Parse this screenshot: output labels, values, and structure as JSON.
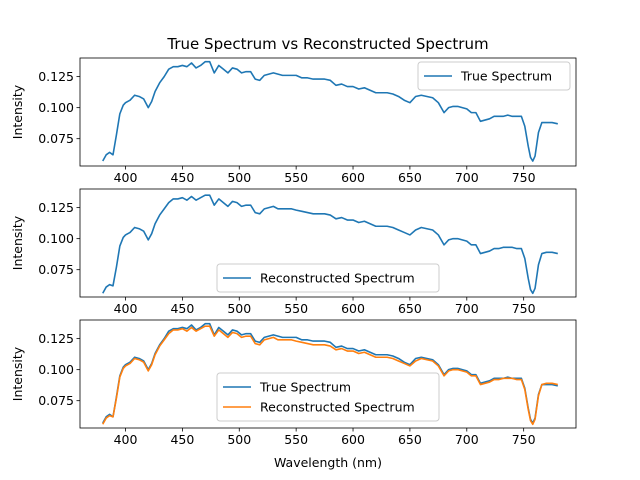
{
  "chart_data": [
    {
      "type": "line",
      "title": "True Spectrum vs Reconstructed Spectrum",
      "xlabel": "",
      "ylabel": "Intensity",
      "xlim": [
        360,
        796
      ],
      "ylim": [
        0.053,
        0.14
      ],
      "xticks": [
        "400",
        "450",
        "500",
        "550",
        "600",
        "650",
        "700",
        "750"
      ],
      "yticks": [
        "0.075",
        "0.100",
        "0.125"
      ],
      "legend_position": "upper right",
      "series": [
        {
          "name": "True Spectrum",
          "color": "#1f77b4",
          "ref": "true"
        }
      ]
    },
    {
      "type": "line",
      "title": "",
      "xlabel": "",
      "ylabel": "Intensity",
      "xlim": [
        360,
        796
      ],
      "ylim": [
        0.053,
        0.14
      ],
      "xticks": [
        "400",
        "450",
        "500",
        "550",
        "600",
        "650",
        "700",
        "750"
      ],
      "yticks": [
        "0.075",
        "0.100",
        "0.125"
      ],
      "legend_position": "lower center",
      "series": [
        {
          "name": "Reconstructed Spectrum",
          "color": "#1f77b4",
          "ref": "reconstructed"
        }
      ]
    },
    {
      "type": "line",
      "title": "",
      "xlabel": "Wavelength (nm)",
      "ylabel": "Intensity",
      "xlim": [
        360,
        796
      ],
      "ylim": [
        0.053,
        0.14
      ],
      "xticks": [
        "400",
        "450",
        "500",
        "550",
        "600",
        "650",
        "700",
        "750"
      ],
      "yticks": [
        "0.075",
        "0.100",
        "0.125"
      ],
      "legend_position": "lower center",
      "series": [
        {
          "name": "True Spectrum",
          "color": "#1f77b4",
          "ref": "true"
        },
        {
          "name": "Reconstructed Spectrum",
          "color": "#ff7f0e",
          "ref": "reconstructed"
        }
      ]
    }
  ],
  "spectra": {
    "x": [
      380,
      383,
      386,
      389,
      392,
      395,
      398,
      400,
      404,
      408,
      412,
      416,
      420,
      423,
      426,
      430,
      434,
      438,
      442,
      446,
      450,
      454,
      458,
      462,
      466,
      470,
      474,
      478,
      482,
      486,
      490,
      494,
      498,
      502,
      506,
      510,
      514,
      518,
      522,
      526,
      530,
      534,
      538,
      542,
      546,
      550,
      555,
      560,
      565,
      570,
      575,
      580,
      585,
      590,
      595,
      600,
      605,
      610,
      615,
      620,
      625,
      630,
      635,
      640,
      645,
      650,
      655,
      660,
      665,
      670,
      675,
      680,
      684,
      688,
      692,
      696,
      700,
      704,
      708,
      712,
      716,
      720,
      724,
      728,
      732,
      736,
      740,
      744,
      748,
      751,
      754,
      756,
      758,
      760,
      763,
      766,
      770,
      775,
      780
    ],
    "true": [
      0.057,
      0.062,
      0.064,
      0.062,
      0.078,
      0.095,
      0.102,
      0.104,
      0.106,
      0.11,
      0.109,
      0.107,
      0.1,
      0.105,
      0.113,
      0.12,
      0.125,
      0.131,
      0.133,
      0.133,
      0.134,
      0.133,
      0.136,
      0.132,
      0.134,
      0.137,
      0.137,
      0.128,
      0.134,
      0.131,
      0.128,
      0.132,
      0.131,
      0.128,
      0.129,
      0.129,
      0.123,
      0.122,
      0.126,
      0.127,
      0.128,
      0.127,
      0.126,
      0.126,
      0.126,
      0.126,
      0.124,
      0.124,
      0.123,
      0.123,
      0.123,
      0.122,
      0.118,
      0.119,
      0.117,
      0.117,
      0.115,
      0.116,
      0.114,
      0.112,
      0.112,
      0.112,
      0.111,
      0.109,
      0.106,
      0.104,
      0.109,
      0.11,
      0.109,
      0.108,
      0.104,
      0.096,
      0.1,
      0.101,
      0.101,
      0.1,
      0.099,
      0.096,
      0.096,
      0.089,
      0.09,
      0.091,
      0.093,
      0.093,
      0.093,
      0.094,
      0.093,
      0.093,
      0.093,
      0.085,
      0.069,
      0.06,
      0.057,
      0.061,
      0.08,
      0.088,
      0.088,
      0.088,
      0.087
    ],
    "reconstructed": [
      0.056,
      0.061,
      0.063,
      0.062,
      0.077,
      0.094,
      0.101,
      0.103,
      0.105,
      0.109,
      0.108,
      0.106,
      0.099,
      0.104,
      0.112,
      0.119,
      0.124,
      0.129,
      0.132,
      0.132,
      0.133,
      0.131,
      0.134,
      0.131,
      0.133,
      0.135,
      0.135,
      0.127,
      0.132,
      0.129,
      0.126,
      0.13,
      0.129,
      0.126,
      0.127,
      0.127,
      0.121,
      0.12,
      0.124,
      0.125,
      0.126,
      0.124,
      0.124,
      0.124,
      0.124,
      0.123,
      0.122,
      0.121,
      0.12,
      0.12,
      0.12,
      0.119,
      0.116,
      0.117,
      0.115,
      0.115,
      0.113,
      0.114,
      0.112,
      0.11,
      0.11,
      0.11,
      0.109,
      0.107,
      0.105,
      0.103,
      0.107,
      0.109,
      0.108,
      0.107,
      0.103,
      0.095,
      0.099,
      0.1,
      0.1,
      0.099,
      0.098,
      0.095,
      0.095,
      0.088,
      0.089,
      0.09,
      0.092,
      0.092,
      0.093,
      0.093,
      0.093,
      0.092,
      0.092,
      0.084,
      0.068,
      0.059,
      0.056,
      0.06,
      0.079,
      0.088,
      0.089,
      0.089,
      0.088
    ]
  }
}
